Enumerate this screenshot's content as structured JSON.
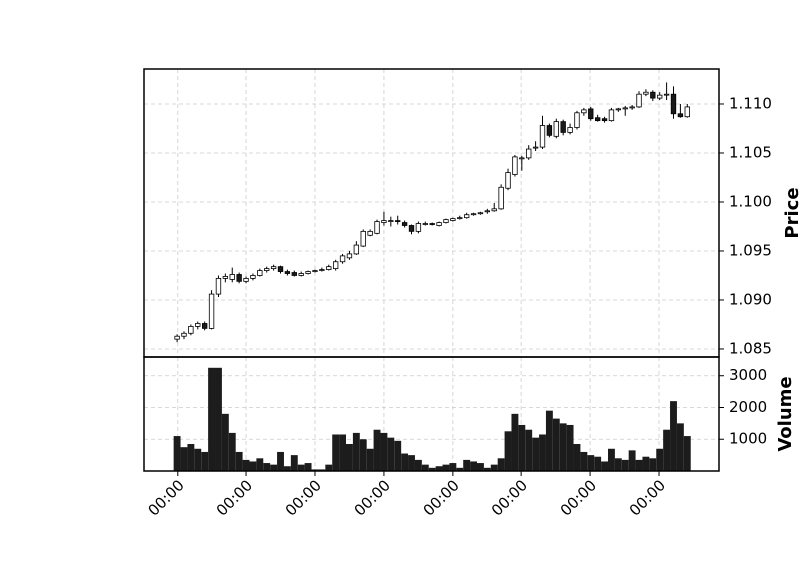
{
  "chart_data": {
    "type": "candlestick",
    "ylabel": "Price",
    "volume_label": "Volume",
    "up_color": "#ffffff",
    "down_color": "#1a1a1a",
    "volume_color": "#1c1c1c",
    "grid": true,
    "open": [
      1.086,
      1.0863,
      1.0866,
      1.0873,
      1.0876,
      1.0871,
      1.0906,
      1.0922,
      1.0921,
      1.0926,
      1.0919,
      1.0922,
      1.0925,
      1.093,
      1.0932,
      1.0934,
      1.0929,
      1.0928,
      1.0925,
      1.0927,
      1.0929,
      1.093,
      1.0931,
      1.0932,
      1.0939,
      1.0943,
      1.0947,
      1.0955,
      1.0966,
      1.0968,
      1.0979,
      1.098,
      1.0981,
      1.0979,
      1.0976,
      1.097,
      1.0977,
      1.0978,
      1.0976,
      1.0979,
      1.0981,
      1.0983,
      1.0984,
      1.0987,
      1.0988,
      1.099,
      1.0991,
      1.0993,
      1.1014,
      1.1028,
      1.1044,
      1.1045,
      1.1055,
      1.1056,
      1.1078,
      1.1067,
      1.1082,
      1.1071,
      1.1076,
      1.1091,
      1.1095,
      1.1086,
      1.1085,
      1.1083,
      1.1094,
      1.1095,
      1.1096,
      1.1097,
      1.111,
      1.1112,
      1.1106,
      1.1109,
      1.111,
      1.109,
      1.1087
    ],
    "high": [
      1.0865,
      1.0868,
      1.0875,
      1.0878,
      1.0878,
      1.091,
      1.0925,
      1.0927,
      1.0933,
      1.0928,
      1.0924,
      1.0927,
      1.0932,
      1.0934,
      1.0936,
      1.0935,
      1.0931,
      1.093,
      1.0929,
      1.093,
      1.0931,
      1.0933,
      1.0936,
      1.0941,
      1.0947,
      1.095,
      1.096,
      1.0972,
      1.0972,
      1.0982,
      1.099,
      1.0985,
      1.0986,
      1.0981,
      1.0977,
      1.098,
      1.098,
      1.0979,
      1.098,
      1.0983,
      1.0984,
      1.0986,
      1.0989,
      1.0989,
      1.099,
      1.0993,
      1.0999,
      1.1018,
      1.1034,
      1.1048,
      1.1047,
      1.1058,
      1.1062,
      1.1088,
      1.108,
      1.1085,
      1.1084,
      1.108,
      1.1093,
      1.1096,
      1.1097,
      1.1089,
      1.1087,
      1.1096,
      1.1096,
      1.1098,
      1.1099,
      1.1113,
      1.1115,
      1.1114,
      1.1112,
      1.1122,
      1.1118,
      1.11,
      1.11
    ],
    "low": [
      1.0857,
      1.086,
      1.0864,
      1.087,
      1.0869,
      1.087,
      1.0903,
      1.0918,
      1.0918,
      1.0917,
      1.0917,
      1.092,
      1.0924,
      1.0928,
      1.093,
      1.0927,
      1.0925,
      1.0924,
      1.0924,
      1.0926,
      1.0928,
      1.0929,
      1.093,
      1.093,
      1.0937,
      1.0941,
      1.0946,
      1.0954,
      1.0965,
      1.0967,
      1.0976,
      1.0975,
      1.0977,
      1.0974,
      1.0967,
      1.0968,
      1.0976,
      1.0976,
      1.0975,
      1.0978,
      1.098,
      1.0982,
      1.0983,
      1.0986,
      1.0987,
      1.0988,
      1.099,
      1.0992,
      1.1012,
      1.1026,
      1.1032,
      1.1043,
      1.1052,
      1.1054,
      1.1066,
      1.1065,
      1.1068,
      1.1069,
      1.1074,
      1.1088,
      1.1083,
      1.1082,
      1.1081,
      1.1082,
      1.1092,
      1.1088,
      1.1094,
      1.1096,
      1.1108,
      1.1103,
      1.1104,
      1.1104,
      1.1085,
      1.1086,
      1.1086
    ],
    "close": [
      1.0863,
      1.0866,
      1.0873,
      1.0876,
      1.0871,
      1.0906,
      1.0922,
      1.0924,
      1.0926,
      1.0919,
      1.0922,
      1.0925,
      1.093,
      1.0932,
      1.0934,
      1.0929,
      1.0927,
      1.0925,
      1.0927,
      1.0929,
      1.093,
      1.0931,
      1.0934,
      1.0939,
      1.0945,
      1.0947,
      1.0956,
      1.097,
      1.097,
      1.098,
      1.0981,
      1.0981,
      1.098,
      1.0976,
      1.097,
      1.0978,
      1.0978,
      1.0977,
      1.0979,
      1.0982,
      1.0983,
      1.0984,
      1.0987,
      1.0988,
      1.0989,
      1.0991,
      1.0993,
      1.1015,
      1.103,
      1.1046,
      1.1045,
      1.1054,
      1.1056,
      1.1078,
      1.1068,
      1.1082,
      1.1071,
      1.1076,
      1.1091,
      1.1094,
      1.1085,
      1.1083,
      1.1083,
      1.1094,
      1.1095,
      1.1096,
      1.1097,
      1.111,
      1.1112,
      1.1106,
      1.1109,
      1.111,
      1.109,
      1.1087,
      1.1097
    ],
    "volume": [
      1100,
      750,
      850,
      700,
      600,
      3250,
      3250,
      1800,
      1200,
      600,
      350,
      300,
      400,
      250,
      200,
      600,
      150,
      500,
      200,
      250,
      50,
      50,
      200,
      1150,
      1150,
      850,
      1200,
      1000,
      700,
      1300,
      1200,
      1050,
      950,
      550,
      500,
      350,
      200,
      100,
      150,
      200,
      250,
      100,
      350,
      300,
      250,
      100,
      200,
      400,
      1250,
      1800,
      1450,
      1300,
      1050,
      1150,
      1900,
      1650,
      1500,
      1450,
      850,
      600,
      500,
      450,
      300,
      700,
      400,
      350,
      650,
      350,
      450,
      400,
      700,
      1300,
      2200,
      1500,
      1100
    ],
    "xlim": [
      -4.8,
      78.6
    ],
    "xticks": [
      {
        "value": 0.1,
        "label": "00:00"
      },
      {
        "value": 10,
        "label": "00:00"
      },
      {
        "value": 20,
        "label": "00:00"
      },
      {
        "value": 30,
        "label": "00:00"
      },
      {
        "value": 40,
        "label": "00:00"
      },
      {
        "value": 49.9,
        "label": "00:00"
      },
      {
        "value": 59.9,
        "label": "00:00"
      },
      {
        "value": 69.9,
        "label": "00:00"
      }
    ],
    "ylim": [
      1.08418,
      1.11357
    ],
    "yticks": [
      1.085,
      {
        "value": 1.09,
        "label": "1.090"
      },
      1.095,
      {
        "value": 1.1,
        "label": "1.100"
      },
      1.105,
      {
        "value": 1.11,
        "label": "1.110"
      }
    ],
    "volume_ylim": [
      0,
      3590
    ],
    "volume_yticks": [
      1000,
      2000,
      3000
    ]
  }
}
